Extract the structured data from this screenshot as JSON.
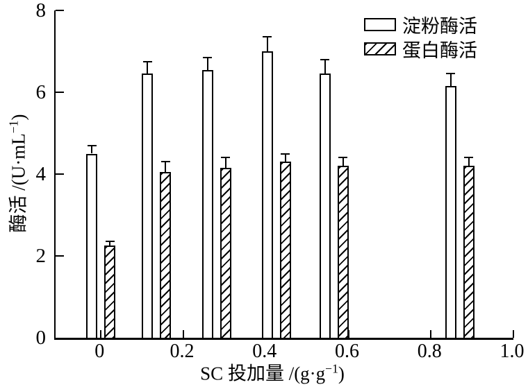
{
  "chart_data": {
    "type": "bar",
    "title": "",
    "xlabel": {
      "text": "SC 投加量 /(g·g−1)",
      "pre": "SC 投加量 /(g·g",
      "sup": "−1",
      "post": ")"
    },
    "ylabel": {
      "text": "酶活 /(U·mL−1)",
      "pre": "酶活 /(U·mL",
      "sup": "−1",
      "post": ")"
    },
    "xlim": [
      -0.11,
      1.0
    ],
    "ylim": [
      0,
      8
    ],
    "xticks": [
      0,
      0.2,
      0.4,
      0.6,
      0.8,
      1.0
    ],
    "xtick_labels": [
      "0",
      "0.2",
      "0.4",
      "0.6",
      "0.8",
      "1.0"
    ],
    "yticks": [
      0,
      2,
      4,
      6,
      8
    ],
    "ytick_labels": [
      "0",
      "2",
      "4",
      "6",
      "8"
    ],
    "grid": false,
    "legend_position": "top-right-inside",
    "x": [
      0,
      0.135,
      0.28,
      0.425,
      0.565,
      0.87
    ],
    "series": [
      {
        "name": "淀粉酶活",
        "style": "open",
        "values": [
          4.5,
          6.45,
          6.55,
          7.0,
          6.45,
          6.15
        ],
        "errors": [
          0.2,
          0.3,
          0.3,
          0.35,
          0.35,
          0.3
        ]
      },
      {
        "name": "蛋白酶活",
        "style": "hatched",
        "values": [
          2.25,
          4.05,
          4.15,
          4.3,
          4.2,
          4.2
        ],
        "errors": [
          0.1,
          0.25,
          0.25,
          0.2,
          0.2,
          0.2
        ]
      }
    ],
    "colors": {
      "ink": "#000000",
      "background": "#ffffff"
    }
  }
}
